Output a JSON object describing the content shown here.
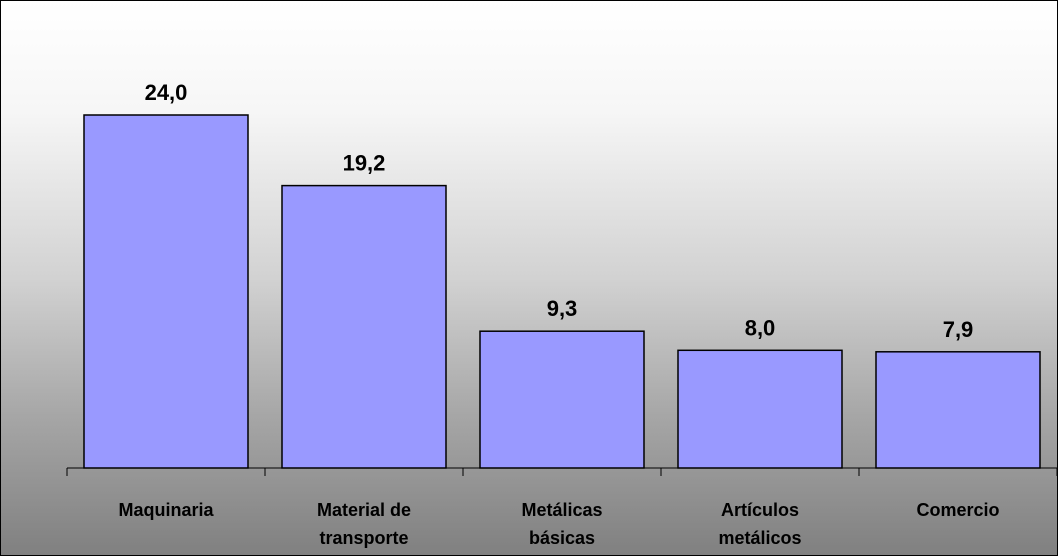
{
  "chart_data": {
    "type": "bar",
    "categories": [
      [
        "Maquinaria"
      ],
      [
        "Material de",
        "transporte"
      ],
      [
        "Metálicas",
        "básicas"
      ],
      [
        "Artículos",
        "metálicos"
      ],
      [
        "Comercio"
      ]
    ],
    "values": [
      24.0,
      19.2,
      9.3,
      8.0,
      7.9
    ],
    "value_labels": [
      "24,0",
      "19,2",
      "9,3",
      "8,0",
      "7,9"
    ],
    "title": "",
    "xlabel": "",
    "ylabel": "",
    "ylim": [
      0,
      24.0
    ],
    "grid": false,
    "legend": "none",
    "colors": {
      "bar_fill": "#9999ff",
      "bar_stroke": "#000000",
      "axis": "#000000"
    }
  }
}
